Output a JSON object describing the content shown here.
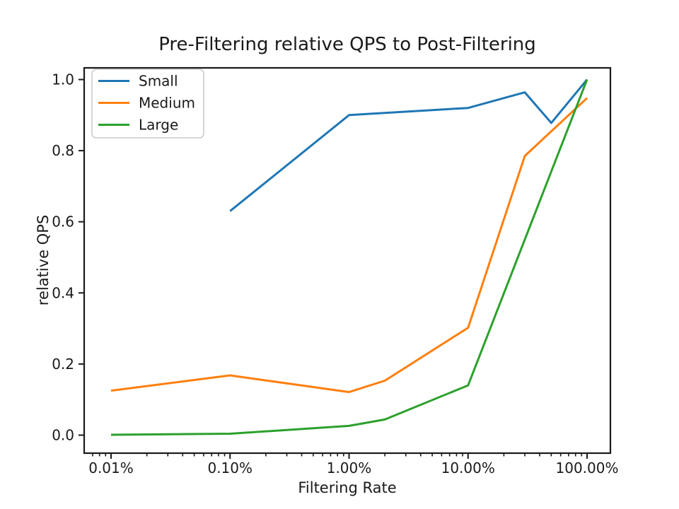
{
  "chart_data": {
    "type": "line",
    "title": "Pre-Filtering relative QPS to Post-Filtering",
    "xlabel": "Filtering Rate",
    "ylabel": "relative QPS",
    "x_scale": "log",
    "grid": false,
    "legend_position": "upper-left",
    "x_domain_pct": [
      0.006,
      157
    ],
    "ylim": [
      -0.05,
      1.03
    ],
    "x_tick_values": [
      0.01,
      0.1,
      1,
      10,
      100
    ],
    "x_tick_labels": [
      "0.01%",
      "0.10%",
      "1.00%",
      "10.00%",
      "100.00%"
    ],
    "y_tick_values": [
      0.0,
      0.2,
      0.4,
      0.6,
      0.8,
      1.0
    ],
    "y_tick_labels": [
      "0.0",
      "0.2",
      "0.4",
      "0.6",
      "0.8",
      "1.0"
    ],
    "axis_color": "#1a1a1a",
    "legend_border_color": "#cccccc",
    "series": [
      {
        "name": "Small",
        "color": "#1f77b4",
        "points": [
          [
            0.1,
            0.63
          ],
          [
            1,
            0.9
          ],
          [
            10,
            0.92
          ],
          [
            30,
            0.964
          ],
          [
            50,
            0.878
          ],
          [
            100,
            1.0
          ]
        ]
      },
      {
        "name": "Medium",
        "color": "#ff7f0e",
        "points": [
          [
            0.01,
            0.125
          ],
          [
            0.1,
            0.168
          ],
          [
            1,
            0.121
          ],
          [
            2,
            0.153
          ],
          [
            10,
            0.302
          ],
          [
            30,
            0.785
          ],
          [
            100,
            0.948
          ]
        ]
      },
      {
        "name": "Large",
        "color": "#2ca02c",
        "points": [
          [
            0.01,
            0.001
          ],
          [
            0.1,
            0.004
          ],
          [
            1,
            0.026
          ],
          [
            2,
            0.044
          ],
          [
            10,
            0.14
          ],
          [
            100,
            1.0
          ]
        ]
      }
    ]
  }
}
